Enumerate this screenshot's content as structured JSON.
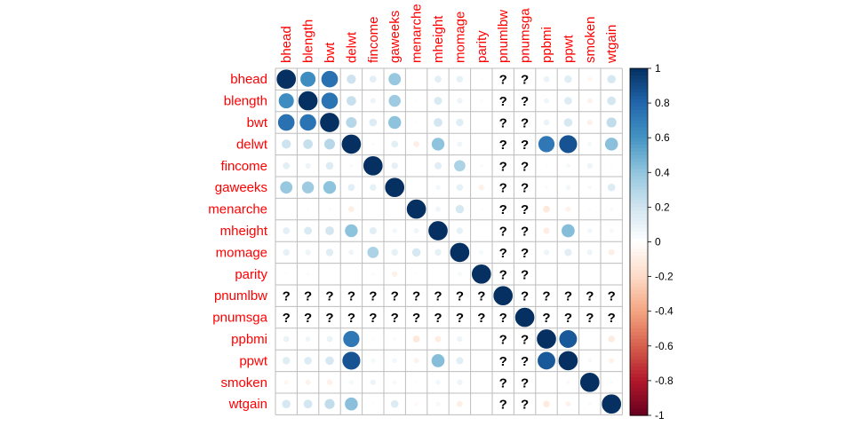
{
  "chart_data": {
    "type": "heatmap",
    "variables": [
      "bhead",
      "blength",
      "bwt",
      "delwt",
      "fincome",
      "gaweeks",
      "menarche",
      "mheight",
      "momage",
      "parity",
      "pnumlbw",
      "pnumsga",
      "ppbmi",
      "ppwt",
      "smoken",
      "wtgain"
    ],
    "matrix": [
      [
        1,
        0.63,
        0.75,
        0.21,
        0.12,
        0.38,
        0.0,
        0.12,
        0.11,
        -0.02,
        null,
        null,
        0.09,
        0.14,
        -0.05,
        0.18
      ],
      [
        0.63,
        1,
        0.74,
        0.23,
        0.08,
        0.36,
        -0.02,
        0.16,
        0.08,
        -0.03,
        null,
        null,
        0.07,
        0.15,
        -0.07,
        0.19
      ],
      [
        0.75,
        0.74,
        1,
        0.29,
        0.15,
        0.41,
        -0.02,
        0.19,
        0.14,
        -0.01,
        null,
        null,
        0.09,
        0.18,
        -0.08,
        0.25
      ],
      [
        0.21,
        0.23,
        0.29,
        1,
        0.03,
        0.12,
        -0.09,
        0.41,
        0.07,
        0.0,
        null,
        null,
        0.72,
        0.87,
        0.05,
        0.42
      ],
      [
        0.12,
        0.08,
        0.15,
        0.03,
        1,
        0.11,
        0.0,
        0.13,
        0.32,
        -0.03,
        null,
        null,
        -0.02,
        0.05,
        0.08,
        -0.02
      ],
      [
        0.38,
        0.36,
        0.41,
        0.12,
        0.11,
        1,
        -0.01,
        0.06,
        0.11,
        -0.08,
        null,
        null,
        0.03,
        0.06,
        0.04,
        0.15
      ],
      [
        0.0,
        -0.02,
        -0.02,
        -0.09,
        0.0,
        -0.01,
        1,
        0.07,
        0.18,
        0.02,
        null,
        null,
        -0.12,
        -0.07,
        0.02,
        -0.04
      ],
      [
        0.12,
        0.16,
        0.19,
        0.41,
        0.13,
        0.06,
        0.07,
        1,
        0.11,
        -0.01,
        null,
        null,
        -0.1,
        0.43,
        0.06,
        0.05
      ],
      [
        0.11,
        0.08,
        0.14,
        0.07,
        0.32,
        0.11,
        0.18,
        0.11,
        1,
        0.05,
        null,
        null,
        0.08,
        0.13,
        0.08,
        -0.09
      ],
      [
        -0.02,
        -0.03,
        -0.01,
        0.0,
        -0.03,
        -0.08,
        0.02,
        -0.01,
        0.05,
        1,
        null,
        null,
        -0.01,
        -0.01,
        -0.01,
        0.01
      ],
      [
        null,
        null,
        null,
        null,
        null,
        null,
        null,
        null,
        null,
        null,
        1,
        null,
        null,
        null,
        null,
        null
      ],
      [
        null,
        null,
        null,
        null,
        null,
        null,
        null,
        null,
        null,
        null,
        null,
        1,
        null,
        null,
        null,
        null
      ],
      [
        0.09,
        0.07,
        0.09,
        0.72,
        -0.02,
        0.03,
        -0.12,
        -0.1,
        0.08,
        -0.01,
        null,
        null,
        1,
        0.85,
        0.01,
        -0.11
      ],
      [
        0.14,
        0.15,
        0.18,
        0.87,
        0.05,
        0.06,
        -0.07,
        0.43,
        0.13,
        -0.01,
        null,
        null,
        0.85,
        1,
        0.04,
        -0.07
      ],
      [
        -0.05,
        -0.07,
        -0.08,
        0.05,
        0.08,
        0.04,
        0.02,
        0.06,
        0.08,
        -0.01,
        null,
        null,
        0.01,
        0.04,
        1,
        0.03
      ],
      [
        0.18,
        0.19,
        0.25,
        0.42,
        -0.02,
        0.15,
        -0.04,
        0.05,
        -0.09,
        0.01,
        null,
        null,
        -0.11,
        -0.07,
        0.03,
        1
      ]
    ],
    "missing_symbol": "?",
    "scale_ticks": [
      "1",
      "0.8",
      "0.6",
      "0.4",
      "0.2",
      "0",
      "-0.2",
      "-0.4",
      "-0.6",
      "-0.8",
      "-1"
    ],
    "scale_range": [
      -1,
      1
    ],
    "legend_position": "right",
    "color_scale": [
      "#67001f",
      "#b2182b",
      "#d6604d",
      "#f4a582",
      "#fddbc7",
      "#ffffff",
      "#d1e5f0",
      "#92c5de",
      "#4393c3",
      "#2166ac",
      "#053061"
    ]
  }
}
